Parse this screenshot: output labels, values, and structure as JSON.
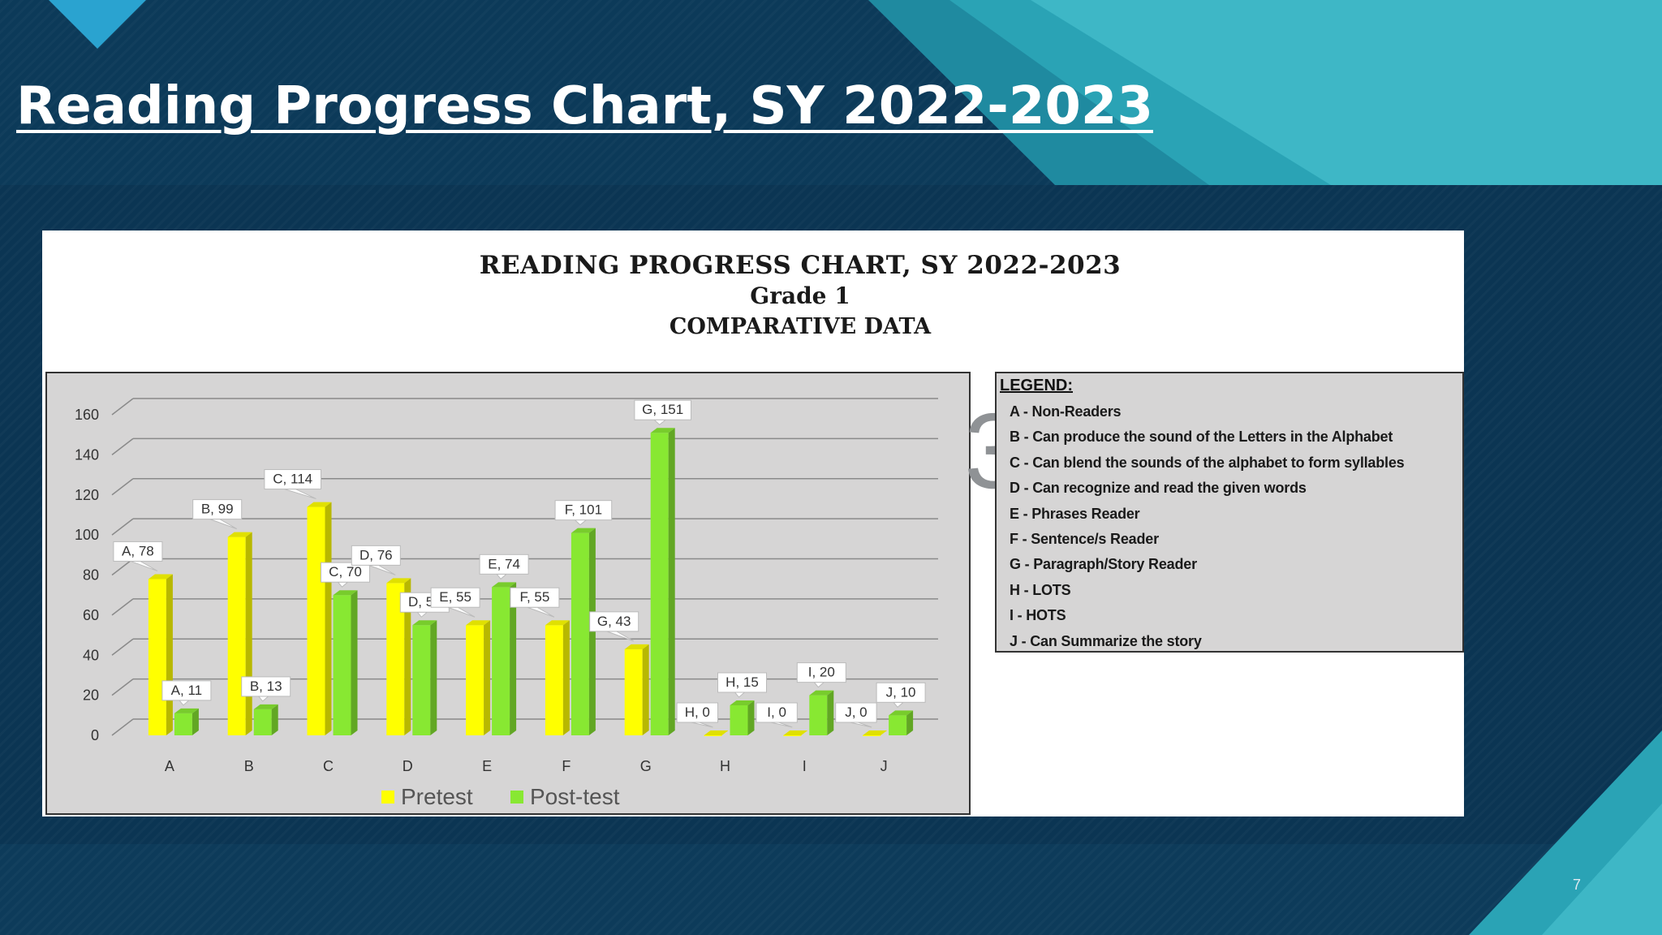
{
  "slide": {
    "title": "Reading Progress Chart, SY 2022-2023",
    "page_number": "7"
  },
  "chart_heading": {
    "line1": "READING PROGRESS CHART, SY 2022-2023",
    "line2": "Grade 1",
    "line3": "COMPARATIVE DATA"
  },
  "legend": {
    "title": "LEGEND:",
    "items": [
      "A - Non-Readers",
      "B - Can produce the sound of the Letters in the Alphabet",
      "C - Can blend the sounds of the alphabet to form syllables",
      "D - Can recognize and read the given words",
      "E - Phrases Reader",
      "F - Sentence/s Reader",
      "G - Paragraph/Story Reader",
      "H - LOTS",
      "I - HOTS",
      "J - Can Summarize the story"
    ]
  },
  "chart_data": {
    "type": "bar",
    "categories": [
      "A",
      "B",
      "C",
      "D",
      "E",
      "F",
      "G",
      "H",
      "I",
      "J"
    ],
    "series": [
      {
        "name": "Pretest",
        "values": [
          78,
          99,
          114,
          76,
          55,
          55,
          43,
          0,
          0,
          0
        ],
        "color": "#ffff00"
      },
      {
        "name": "Post-test",
        "values": [
          11,
          13,
          70,
          55,
          74,
          101,
          151,
          15,
          20,
          10
        ],
        "color": "#88e832"
      }
    ],
    "ylim": [
      0,
      160
    ],
    "yticks": [
      0,
      20,
      40,
      60,
      80,
      100,
      120,
      140,
      160
    ],
    "grid": true,
    "legend_position": "bottom",
    "data_labels": "category, value",
    "style": "3d-clustered-column"
  }
}
